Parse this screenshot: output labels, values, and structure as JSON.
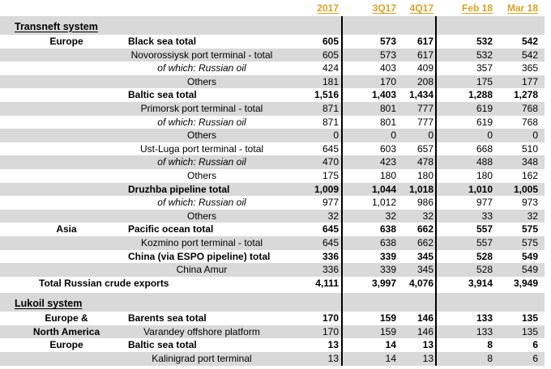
{
  "page": {
    "colors": {
      "header_accent": "#D9A226",
      "row_stripe": "#D9D9D9",
      "divider_line": "#000000",
      "text": "#000000",
      "background": "#FFFFFF"
    }
  },
  "header": {
    "columns": [
      "2017",
      "3Q17",
      "4Q17",
      "Feb 18",
      "Mar 18"
    ]
  },
  "table": {
    "rows": [
      {
        "kind": "section",
        "label": "Transneft system"
      },
      {
        "kind": "data",
        "region": "Europe",
        "label": "Black sea total",
        "style": "total",
        "bold": true,
        "shade": false,
        "values": [
          "605",
          "573",
          "617",
          "532",
          "542"
        ]
      },
      {
        "kind": "data",
        "region": "",
        "label": "Novorossiysk port terminal - total",
        "style": "sub",
        "bold": false,
        "shade": true,
        "values": [
          "605",
          "573",
          "617",
          "532",
          "542"
        ]
      },
      {
        "kind": "data",
        "region": "",
        "label": "of which: Russian oil",
        "style": "subitalic",
        "bold": false,
        "shade": false,
        "values": [
          "424",
          "403",
          "409",
          "357",
          "365"
        ]
      },
      {
        "kind": "data",
        "region": "",
        "label": "Others",
        "style": "sub",
        "bold": false,
        "shade": true,
        "values": [
          "181",
          "170",
          "208",
          "175",
          "177"
        ]
      },
      {
        "kind": "data",
        "region": "",
        "label": "Baltic sea total",
        "style": "total",
        "bold": true,
        "shade": false,
        "values": [
          "1,516",
          "1,403",
          "1,434",
          "1,288",
          "1,278"
        ]
      },
      {
        "kind": "data",
        "region": "",
        "label": "Primorsk port terminal - total",
        "style": "sub",
        "bold": false,
        "shade": true,
        "values": [
          "871",
          "801",
          "777",
          "619",
          "768"
        ]
      },
      {
        "kind": "data",
        "region": "",
        "label": "of which: Russian oil",
        "style": "subitalic",
        "bold": false,
        "shade": false,
        "values": [
          "871",
          "801",
          "777",
          "619",
          "768"
        ]
      },
      {
        "kind": "data",
        "region": "",
        "label": "Others",
        "style": "sub",
        "bold": false,
        "shade": true,
        "values": [
          "0",
          "0",
          "0",
          "0",
          "0"
        ]
      },
      {
        "kind": "data",
        "region": "",
        "label": "Ust-Luga port terminal - total",
        "style": "sub",
        "bold": false,
        "shade": false,
        "values": [
          "645",
          "603",
          "657",
          "668",
          "510"
        ]
      },
      {
        "kind": "data",
        "region": "",
        "label": "of which: Russian oil",
        "style": "subitalic",
        "bold": false,
        "shade": true,
        "values": [
          "470",
          "423",
          "478",
          "488",
          "348"
        ]
      },
      {
        "kind": "data",
        "region": "",
        "label": "Others",
        "style": "sub",
        "bold": false,
        "shade": false,
        "values": [
          "175",
          "180",
          "180",
          "180",
          "162"
        ]
      },
      {
        "kind": "data",
        "region": "",
        "label": "Druzhba pipeline total",
        "style": "total",
        "bold": true,
        "shade": true,
        "values": [
          "1,009",
          "1,044",
          "1,018",
          "1,010",
          "1,005"
        ]
      },
      {
        "kind": "data",
        "region": "",
        "label": "of which: Russian oil",
        "style": "subitalic",
        "bold": false,
        "shade": false,
        "values": [
          "977",
          "1,012",
          "986",
          "977",
          "973"
        ]
      },
      {
        "kind": "data",
        "region": "",
        "label": "Others",
        "style": "sub",
        "bold": false,
        "shade": true,
        "values": [
          "32",
          "32",
          "32",
          "33",
          "32"
        ]
      },
      {
        "kind": "data",
        "region": "Asia",
        "label": "Pacific ocean total",
        "style": "total",
        "bold": true,
        "shade": false,
        "values": [
          "645",
          "638",
          "662",
          "557",
          "575"
        ]
      },
      {
        "kind": "data",
        "region": "",
        "label": "Kozmino port terminal - total",
        "style": "sub",
        "bold": false,
        "shade": true,
        "values": [
          "645",
          "638",
          "662",
          "557",
          "575"
        ]
      },
      {
        "kind": "data",
        "region": "",
        "label": "China (via ESPO pipeline) total",
        "style": "total",
        "bold": true,
        "shade": false,
        "values": [
          "336",
          "339",
          "345",
          "528",
          "549"
        ]
      },
      {
        "kind": "data",
        "region": "",
        "label": "China Amur",
        "style": "sub",
        "bold": false,
        "shade": true,
        "values": [
          "336",
          "339",
          "345",
          "528",
          "549"
        ]
      },
      {
        "kind": "grandtotal",
        "label": "Total Russian crude exports",
        "bold": true,
        "shade": false,
        "values": [
          "4,111",
          "3,997",
          "4,076",
          "3,914",
          "3,949"
        ]
      },
      {
        "kind": "section",
        "label": "Lukoil system",
        "gap_before": true
      },
      {
        "kind": "data",
        "region": "Europe &",
        "label": "Barents sea total",
        "style": "total",
        "bold": true,
        "shade": false,
        "values": [
          "170",
          "159",
          "146",
          "133",
          "135"
        ]
      },
      {
        "kind": "data",
        "region": "North America",
        "label": "Varandey offshore platform",
        "style": "sub",
        "bold": false,
        "shade": true,
        "values": [
          "170",
          "159",
          "146",
          "133",
          "135"
        ]
      },
      {
        "kind": "data",
        "region": "Europe",
        "label": "Baltic sea total",
        "style": "total",
        "bold": true,
        "shade": false,
        "values": [
          "13",
          "14",
          "13",
          "8",
          "6"
        ]
      },
      {
        "kind": "data",
        "region": "",
        "label": "Kalinigrad port terminal",
        "style": "sub",
        "bold": false,
        "shade": true,
        "values": [
          "13",
          "14",
          "13",
          "8",
          "6"
        ]
      }
    ]
  }
}
